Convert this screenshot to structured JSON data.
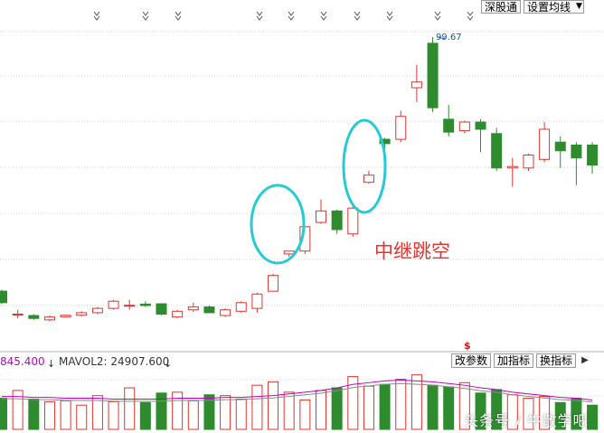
{
  "toolbar": {
    "sgt_label": "深股通",
    "ma_settings_label": "设置均线",
    "ma_dropdown_glyph": "▼"
  },
  "annotation": {
    "text": "中继跳空"
  },
  "price_panel": {
    "max_label": "99.67",
    "up_color": "#e3342f",
    "down_color": "#2e8b2e",
    "highlight_color": "#25cbd3"
  },
  "volume_panel": {
    "vol_value_label": "845.400",
    "mavol2_label": "MAVOL2: 24907.600",
    "arrow_glyph": "↓",
    "mavol_color": "#c000c0",
    "btn_params": "改参数",
    "btn_add": "加指标",
    "btn_switch": "换指标",
    "dollar_mark": "$"
  },
  "watermark": {
    "text": "头条号 / 牛散学吧"
  },
  "chart_data": {
    "type": "candlestick",
    "candles": [
      {
        "o": 11.0,
        "c": 7.0,
        "h": 11.5,
        "l": 6.5
      },
      {
        "o": 3.0,
        "c": 3.0,
        "h": 4.5,
        "l": 1.5
      },
      {
        "o": 2.5,
        "c": 1.5,
        "h": 3.0,
        "l": 1.0
      },
      {
        "o": 1.0,
        "c": 2.0,
        "h": 2.5,
        "l": 0.5
      },
      {
        "o": 2.0,
        "c": 2.6,
        "h": 2.8,
        "l": 1.8
      },
      {
        "o": 2.6,
        "c": 3.5,
        "h": 4.0,
        "l": 2.2
      },
      {
        "o": 3.5,
        "c": 5.0,
        "h": 5.5,
        "l": 3.0
      },
      {
        "o": 5.0,
        "c": 7.5,
        "h": 8.0,
        "l": 4.5
      },
      {
        "o": 6.0,
        "c": 6.1,
        "h": 8.0,
        "l": 4.5
      },
      {
        "o": 6.5,
        "c": 6.0,
        "h": 7.5,
        "l": 5.5
      },
      {
        "o": 6.6,
        "c": 3.0,
        "h": 6.8,
        "l": 2.6
      },
      {
        "o": 2.0,
        "c": 4.0,
        "h": 4.5,
        "l": 1.5
      },
      {
        "o": 4.5,
        "c": 5.5,
        "h": 7.0,
        "l": 3.8
      },
      {
        "o": 5.5,
        "c": 3.5,
        "h": 6.0,
        "l": 3.3
      },
      {
        "o": 2.5,
        "c": 4.5,
        "h": 5.0,
        "l": 2.0
      },
      {
        "o": 4.0,
        "c": 7.0,
        "h": 7.5,
        "l": 3.5
      },
      {
        "o": 5.0,
        "c": 10.0,
        "h": 10.5,
        "l": 3.5
      },
      {
        "o": 11.0,
        "c": 16.5,
        "h": 17.0,
        "l": 11.0
      },
      {
        "o": 24.0,
        "c": 25.0,
        "h": 25.0,
        "l": 23.0
      },
      {
        "o": 25.0,
        "c": 33.5,
        "h": 33.7,
        "l": 24.0
      },
      {
        "o": 35.0,
        "c": 39.0,
        "h": 43.0,
        "l": 34.5
      },
      {
        "o": 39.0,
        "c": 32.5,
        "h": 39.5,
        "l": 31.0
      },
      {
        "o": 31.0,
        "c": 40.0,
        "h": 40.5,
        "l": 30.0
      },
      {
        "o": 49.0,
        "c": 51.5,
        "h": 53.0,
        "l": 48.5
      },
      {
        "o": 64.0,
        "c": 62.5,
        "h": 64.5,
        "l": 53.5
      },
      {
        "o": 64.0,
        "c": 72.0,
        "h": 74.0,
        "l": 63.0
      },
      {
        "o": 82.0,
        "c": 84.0,
        "h": 90.0,
        "l": 77.0
      },
      {
        "o": 97.5,
        "c": 75.0,
        "h": 99.67,
        "l": 73.5
      },
      {
        "o": 71.0,
        "c": 66.5,
        "h": 76.0,
        "l": 65.0
      },
      {
        "o": 67.0,
        "c": 70.0,
        "h": 70.5,
        "l": 66.0
      },
      {
        "o": 70.0,
        "c": 67.5,
        "h": 71.0,
        "l": 59.5
      },
      {
        "o": 66.0,
        "c": 54.0,
        "h": 68.0,
        "l": 53.0
      },
      {
        "o": 54.0,
        "c": 54.5,
        "h": 57.5,
        "l": 47.5
      },
      {
        "o": 54.0,
        "c": 58.5,
        "h": 59.0,
        "l": 53.0
      },
      {
        "o": 57.0,
        "c": 67.5,
        "h": 70.0,
        "l": 56.0
      },
      {
        "o": 63.0,
        "c": 60.0,
        "h": 65.0,
        "l": 54.0
      },
      {
        "o": 62.0,
        "c": 57.5,
        "h": 63.0,
        "l": 48.0
      },
      {
        "o": 62.0,
        "c": 55.0,
        "h": 63.0,
        "l": 52.0
      }
    ],
    "volumes": [
      36,
      45,
      35,
      32,
      33,
      28,
      39,
      32,
      48,
      31,
      42,
      43,
      33,
      40,
      39,
      35,
      51,
      55,
      43,
      34,
      45,
      48,
      61,
      50,
      52,
      58,
      63,
      51,
      49,
      54,
      42,
      46,
      40,
      36,
      38,
      31,
      36,
      28
    ],
    "mavol": [
      38,
      38,
      37,
      37,
      36,
      36,
      36,
      35,
      35,
      35,
      35,
      36,
      36,
      36,
      37,
      37,
      38,
      39,
      41,
      43,
      45,
      48,
      52,
      54,
      56,
      57,
      56,
      55,
      53,
      51,
      48,
      46,
      43,
      41,
      39,
      37,
      36,
      34
    ],
    "vol_max": 70
  }
}
